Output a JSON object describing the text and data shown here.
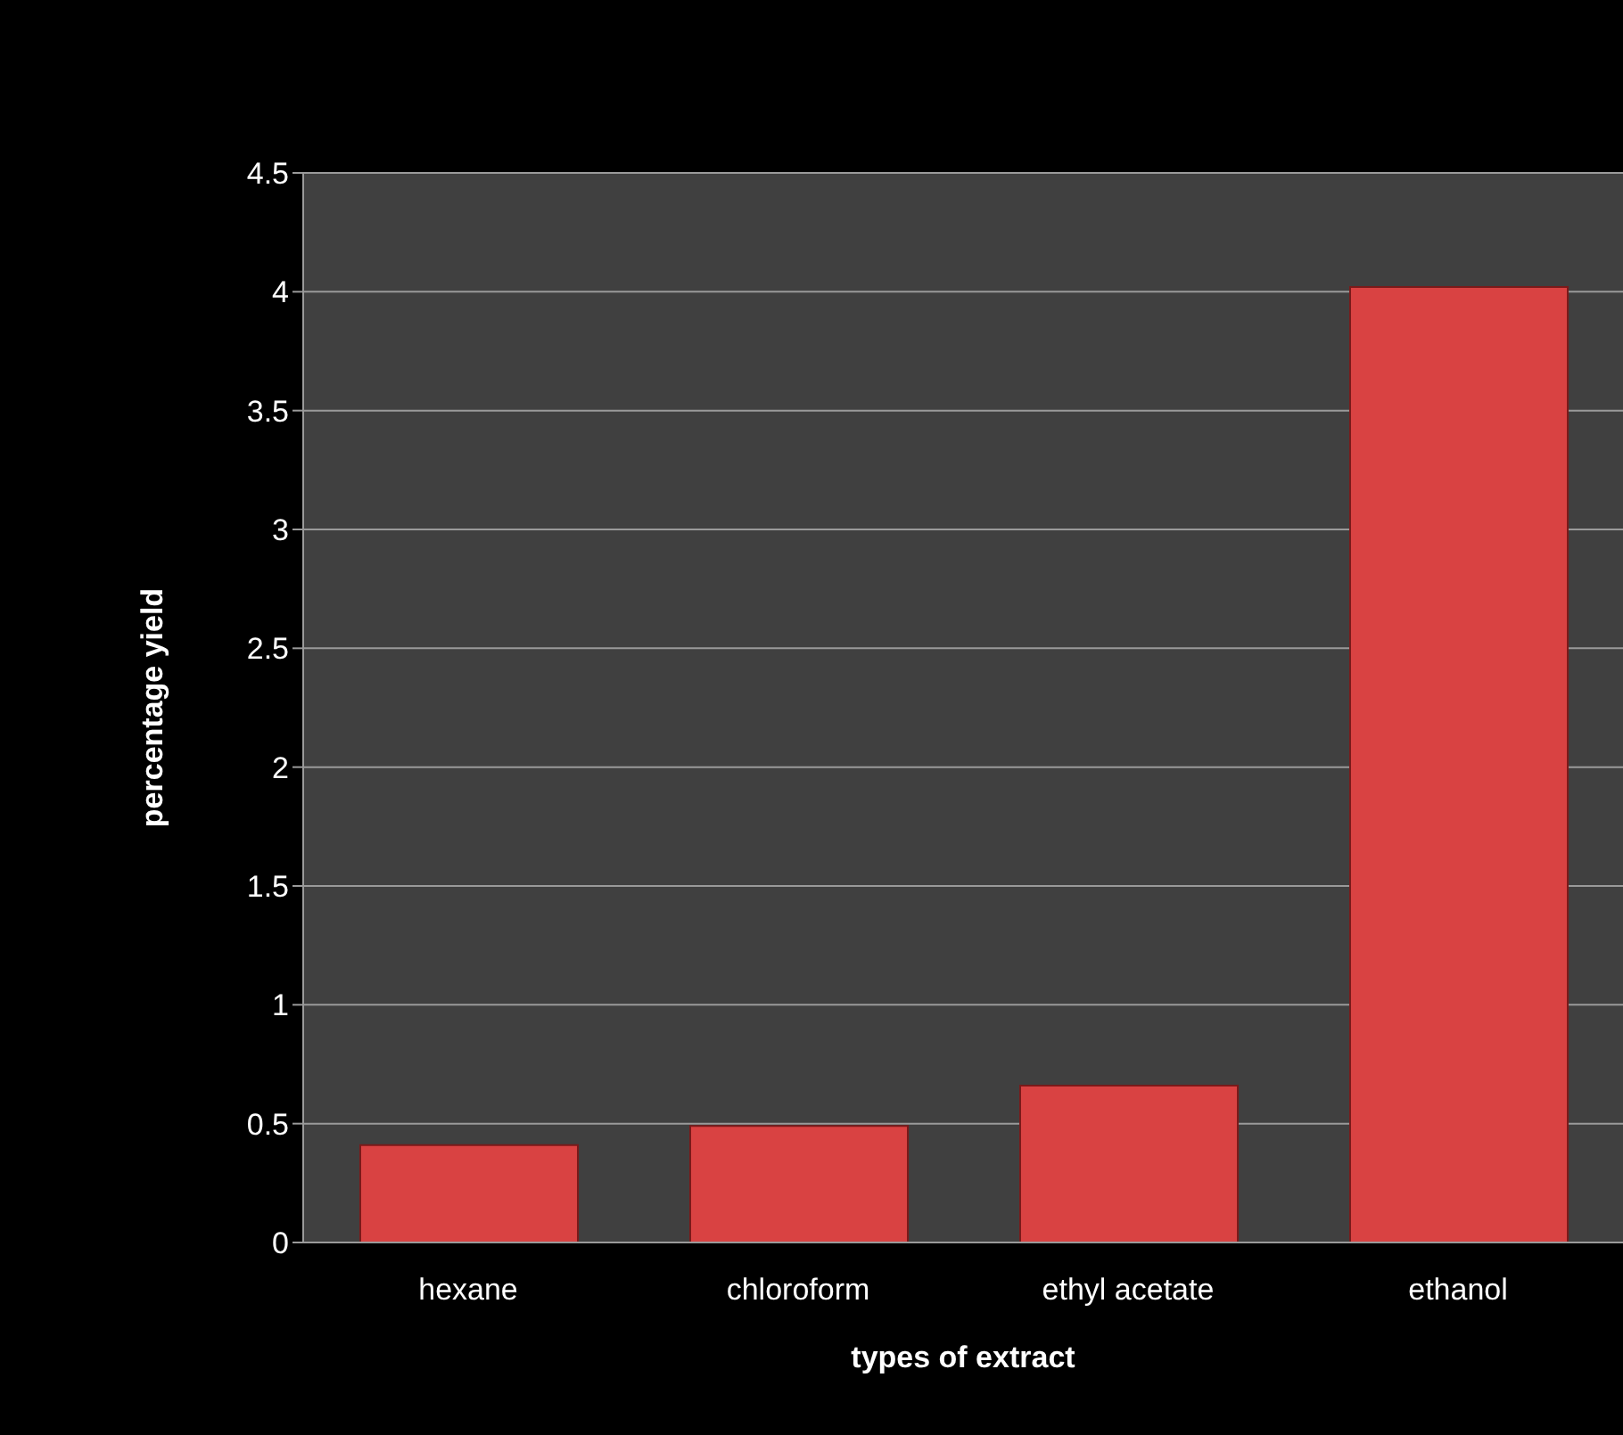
{
  "chart_data": {
    "type": "bar",
    "xlabel": "types of extract",
    "ylabel": "percentage yield",
    "categories": [
      "hexane",
      "chloroform",
      "ethyl acetate",
      "ethanol"
    ],
    "values": [
      0.41,
      0.49,
      0.66,
      4.02
    ],
    "color": "#d94242",
    "ylim": [
      0,
      4.5
    ],
    "yticks": [
      0,
      0.5,
      1,
      1.5,
      2,
      2.5,
      3,
      3.5,
      4,
      4.5
    ],
    "grid": "y"
  }
}
